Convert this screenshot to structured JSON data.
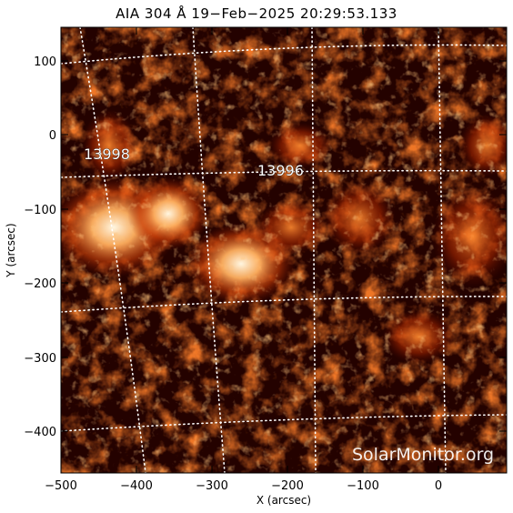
{
  "title": "AIA 304 Å 19−Feb−2025 20:29:53.133",
  "xlabel": "X (arcsec)",
  "ylabel": "Y (arcsec)",
  "x_ticks": [
    "−500",
    "−400",
    "−300",
    "−200",
    "−100",
    "0"
  ],
  "y_ticks": [
    "100",
    "0",
    "−100",
    "−200",
    "−300",
    "−400"
  ],
  "regions": [
    "13998",
    "13996"
  ],
  "watermark": "SolarMonitor.org",
  "colors": {
    "background": "#ffffff",
    "sun_dark": "#1a0000",
    "sun_mid": "#a02000",
    "sun_bright": "#ffe8c0"
  }
}
